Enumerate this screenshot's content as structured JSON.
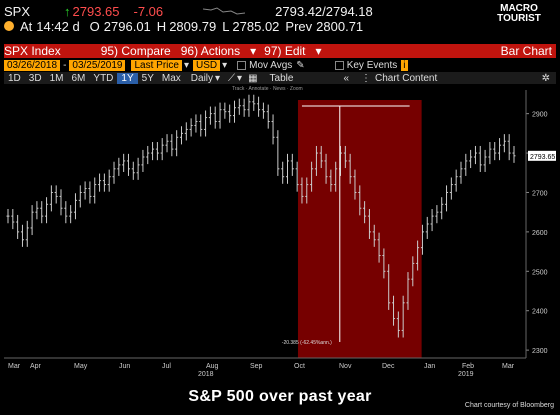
{
  "header": {
    "ticker": "SPX",
    "price": "2793.65",
    "change": "-7.06",
    "bid_ask": "2793.42/2794.18",
    "at_label": "At",
    "time": "14:42 d",
    "open_label": "O",
    "open": "2796.01",
    "high_label": "H",
    "high": "2809.79",
    "low_label": "L",
    "low": "2785.02",
    "prev_label": "Prev",
    "prev": "2800.71"
  },
  "logo": {
    "line1": "MACRO",
    "line2": "TOURIST"
  },
  "toolbar": {
    "index": "SPX Index",
    "compare": "95) Compare",
    "actions": "96) Actions",
    "edit": "97) Edit",
    "bar_chart": "Bar Chart"
  },
  "range": {
    "start": "03/26/2018",
    "end": "03/25/2019",
    "field": "Last Price",
    "currency": "USD",
    "mov_avgs": "Mov Avgs",
    "key_events": "Key Events"
  },
  "periods": {
    "items": [
      "1D",
      "3D",
      "1M",
      "6M",
      "YTD",
      "1Y",
      "5Y",
      "Max"
    ],
    "selected": "1Y",
    "freq": "Daily",
    "table": "Table",
    "chart_content": "Chart Content"
  },
  "mini_tabs": "Track · Annotate · News · Zoom",
  "caption": "S&P 500 over past year",
  "credit": "Chart courtesy of Bloomberg",
  "colors": {
    "highlight": "#8b0000",
    "bars": "#cccccc",
    "accent_orange": "#ffa500",
    "header_red": "#c0140e"
  },
  "chart_data": {
    "type": "bar",
    "series": [
      {
        "values": [
          2640,
          2625,
          2600,
          2580,
          2610,
          2650,
          2660,
          2640,
          2670,
          2700,
          2690,
          2660,
          2640,
          2650,
          2680,
          2700,
          2710,
          2690,
          2720,
          2730,
          2720,
          2740,
          2760,
          2770,
          2780,
          2760,
          2750,
          2770,
          2790,
          2800,
          2810,
          2800,
          2820,
          2830,
          2810,
          2840,
          2850,
          2860,
          2870,
          2880,
          2860,
          2890,
          2900,
          2880,
          2910,
          2905,
          2895,
          2915,
          2920,
          2910,
          2930,
          2925,
          2910,
          2905,
          2880,
          2840,
          2760,
          2740,
          2780,
          2760,
          2720,
          2690,
          2720,
          2760,
          2800,
          2780,
          2740,
          2720,
          2760,
          2800,
          2780,
          2740,
          2700,
          2660,
          2640,
          2600,
          2580,
          2540,
          2500,
          2420,
          2380,
          2350,
          2420,
          2480,
          2520,
          2560,
          2600,
          2620,
          2640,
          2650,
          2670,
          2700,
          2720,
          2740,
          2760,
          2780,
          2790,
          2800,
          2770,
          2790,
          2810,
          2800,
          2820,
          2830,
          2800,
          2793
        ]
      }
    ],
    "x_ticks": [
      "Mar",
      "Apr",
      "May",
      "Jun",
      "Jul",
      "Aug",
      "Sep",
      "Oct",
      "Nov",
      "Dec",
      "Jan",
      "Feb",
      "Mar"
    ],
    "x_year_labels": [
      {
        "label": "2018"
      },
      {
        "label": "2019"
      }
    ],
    "y_ticks": [
      2300,
      2400,
      2500,
      2600,
      2700,
      2800,
      2900
    ],
    "ylim": [
      2280,
      2960
    ],
    "last_value_label": "2793.65",
    "annotation": {
      "label": "-20.385 (-62.45%ann.)"
    },
    "highlight": {
      "from_index": 61,
      "to_index": 85
    }
  }
}
